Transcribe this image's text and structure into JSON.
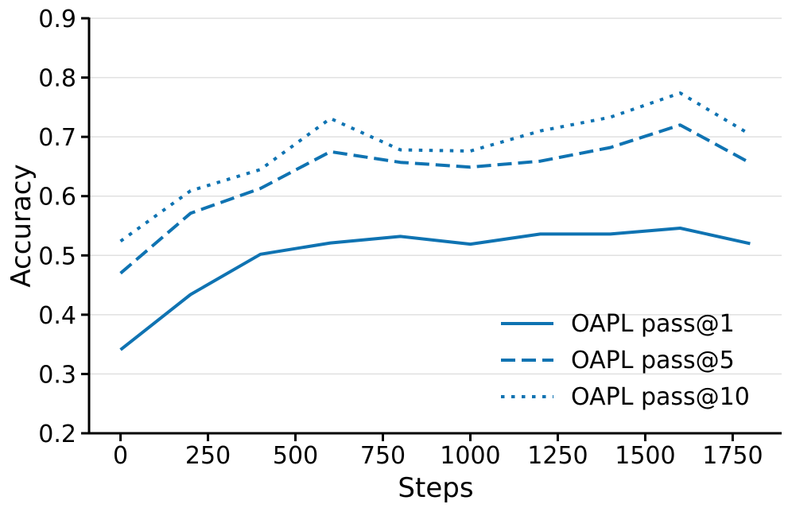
{
  "chart_data": {
    "type": "line",
    "title": "",
    "xlabel": "Steps",
    "ylabel": "Accuracy",
    "x": [
      0,
      200,
      400,
      600,
      800,
      1000,
      1200,
      1400,
      1600,
      1800
    ],
    "series": [
      {
        "name": "OAPL pass@1",
        "line_style": "solid",
        "color": "#0f73b2",
        "values": [
          0.341,
          0.434,
          0.502,
          0.521,
          0.532,
          0.519,
          0.536,
          0.536,
          0.546,
          0.52
        ]
      },
      {
        "name": "OAPL pass@5",
        "line_style": "dashed",
        "color": "#0f73b2",
        "values": [
          0.47,
          0.571,
          0.613,
          0.675,
          0.657,
          0.649,
          0.659,
          0.682,
          0.72,
          0.656
        ]
      },
      {
        "name": "OAPL pass@10",
        "line_style": "dotted",
        "color": "#0f73b2",
        "values": [
          0.524,
          0.609,
          0.645,
          0.731,
          0.678,
          0.676,
          0.71,
          0.733,
          0.774,
          0.704
        ]
      }
    ],
    "xtick_labels": [
      "0",
      "250",
      "500",
      "750",
      "1000",
      "1250",
      "1500",
      "1750"
    ],
    "ytick_labels": [
      "0.2",
      "0.3",
      "0.4",
      "0.5",
      "0.6",
      "0.7",
      "0.8",
      "0.9"
    ],
    "xlim": [
      -90,
      1890
    ],
    "ylim": [
      0.2,
      0.9
    ],
    "grid": "horizontal-only",
    "grid_color": "#e0e0e0",
    "axis_color": "#000000",
    "legend": {
      "position": "lower-right",
      "frame": false,
      "entries": [
        "OAPL pass@1",
        "OAPL pass@5",
        "OAPL pass@10"
      ]
    }
  }
}
